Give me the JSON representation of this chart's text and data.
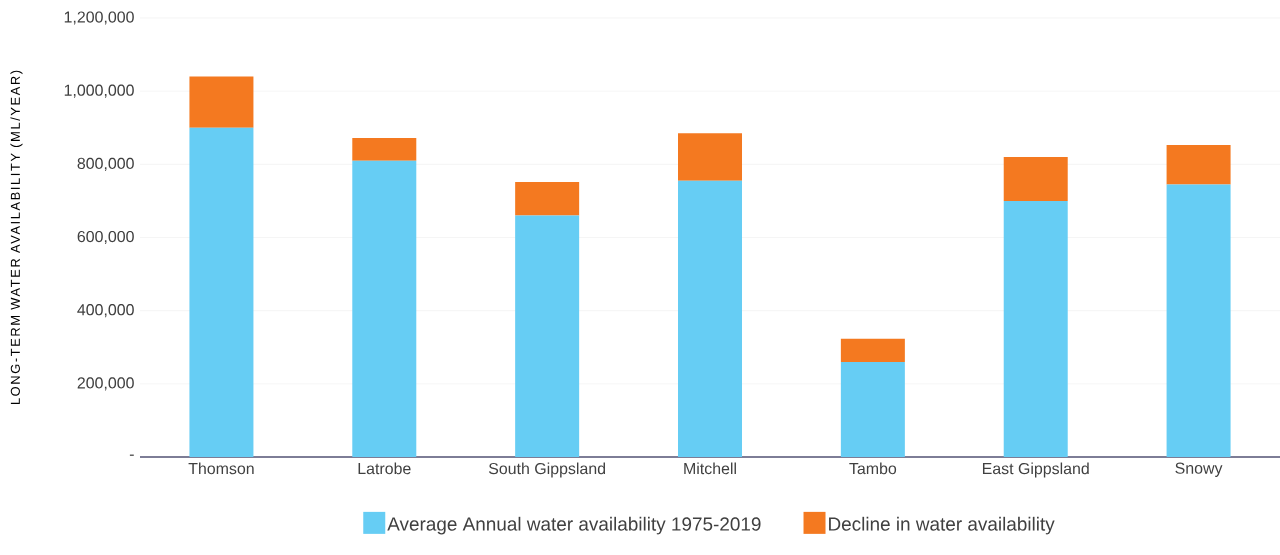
{
  "chart_data": {
    "type": "bar",
    "stacked": true,
    "ylabel": "LONG-TERM WATER AVAILABILITY (ML/YEAR)",
    "categories": [
      "Thomson",
      "Latrobe",
      "South Gippsland",
      "Mitchell",
      "Tambo",
      "East Gippsland",
      "Snowy"
    ],
    "series": [
      {
        "name": "Average Annual water availability 1975-2019",
        "color": "#66cdf4",
        "values": [
          900000,
          810000,
          660000,
          755000,
          260000,
          700000,
          745000
        ]
      },
      {
        "name": "Decline in water availability",
        "color": "#f47920",
        "values": [
          140000,
          62000,
          92000,
          130000,
          63000,
          120000,
          108000
        ]
      }
    ],
    "ylim": [
      0,
      1200000
    ],
    "yticks": [
      {
        "value": 0,
        "label": "-"
      },
      {
        "value": 200000,
        "label": "200,000"
      },
      {
        "value": 400000,
        "label": "400,000"
      },
      {
        "value": 600000,
        "label": "600,000"
      },
      {
        "value": 800000,
        "label": "800,000"
      },
      {
        "value": 1000000,
        "label": "1,000,000"
      },
      {
        "value": 1200000,
        "label": "1,200,000"
      }
    ],
    "grid": "y",
    "legend": "bottom"
  }
}
